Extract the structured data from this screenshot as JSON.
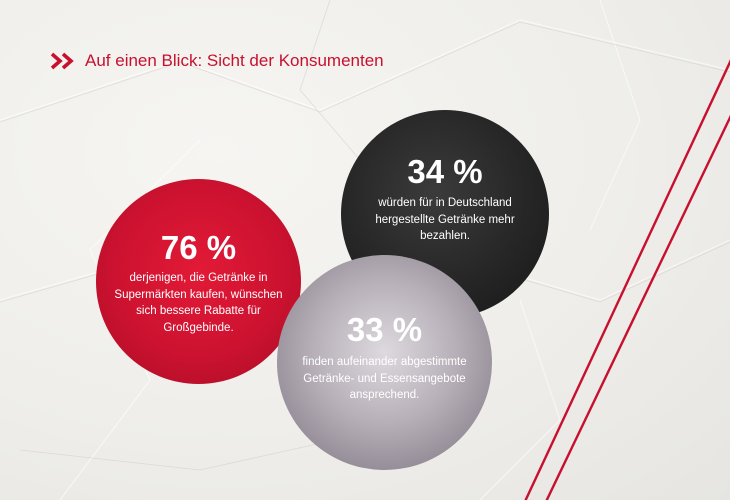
{
  "page": {
    "background_color": "#efeeea",
    "accent_color": "#c8102e"
  },
  "header": {
    "icon": "chevron-double-right-icon",
    "title": "Auf einen Blick: Sicht der Konsumenten"
  },
  "stats": [
    {
      "percent": "76 %",
      "text": "derjenigen, die Getränke in Supermärkten kaufen, wünschen sich bessere Rabatte für Großgebinde.",
      "color": "#cc1230"
    },
    {
      "percent": "34 %",
      "text": "würden für in Deutschland hergestellte Getränke mehr bezahlen.",
      "color": "#262626"
    },
    {
      "percent": "33 %",
      "text": "finden aufeinander abgestimmte Getränke- und Essensangebote ansprechend.",
      "color": "#9e97a0"
    }
  ]
}
